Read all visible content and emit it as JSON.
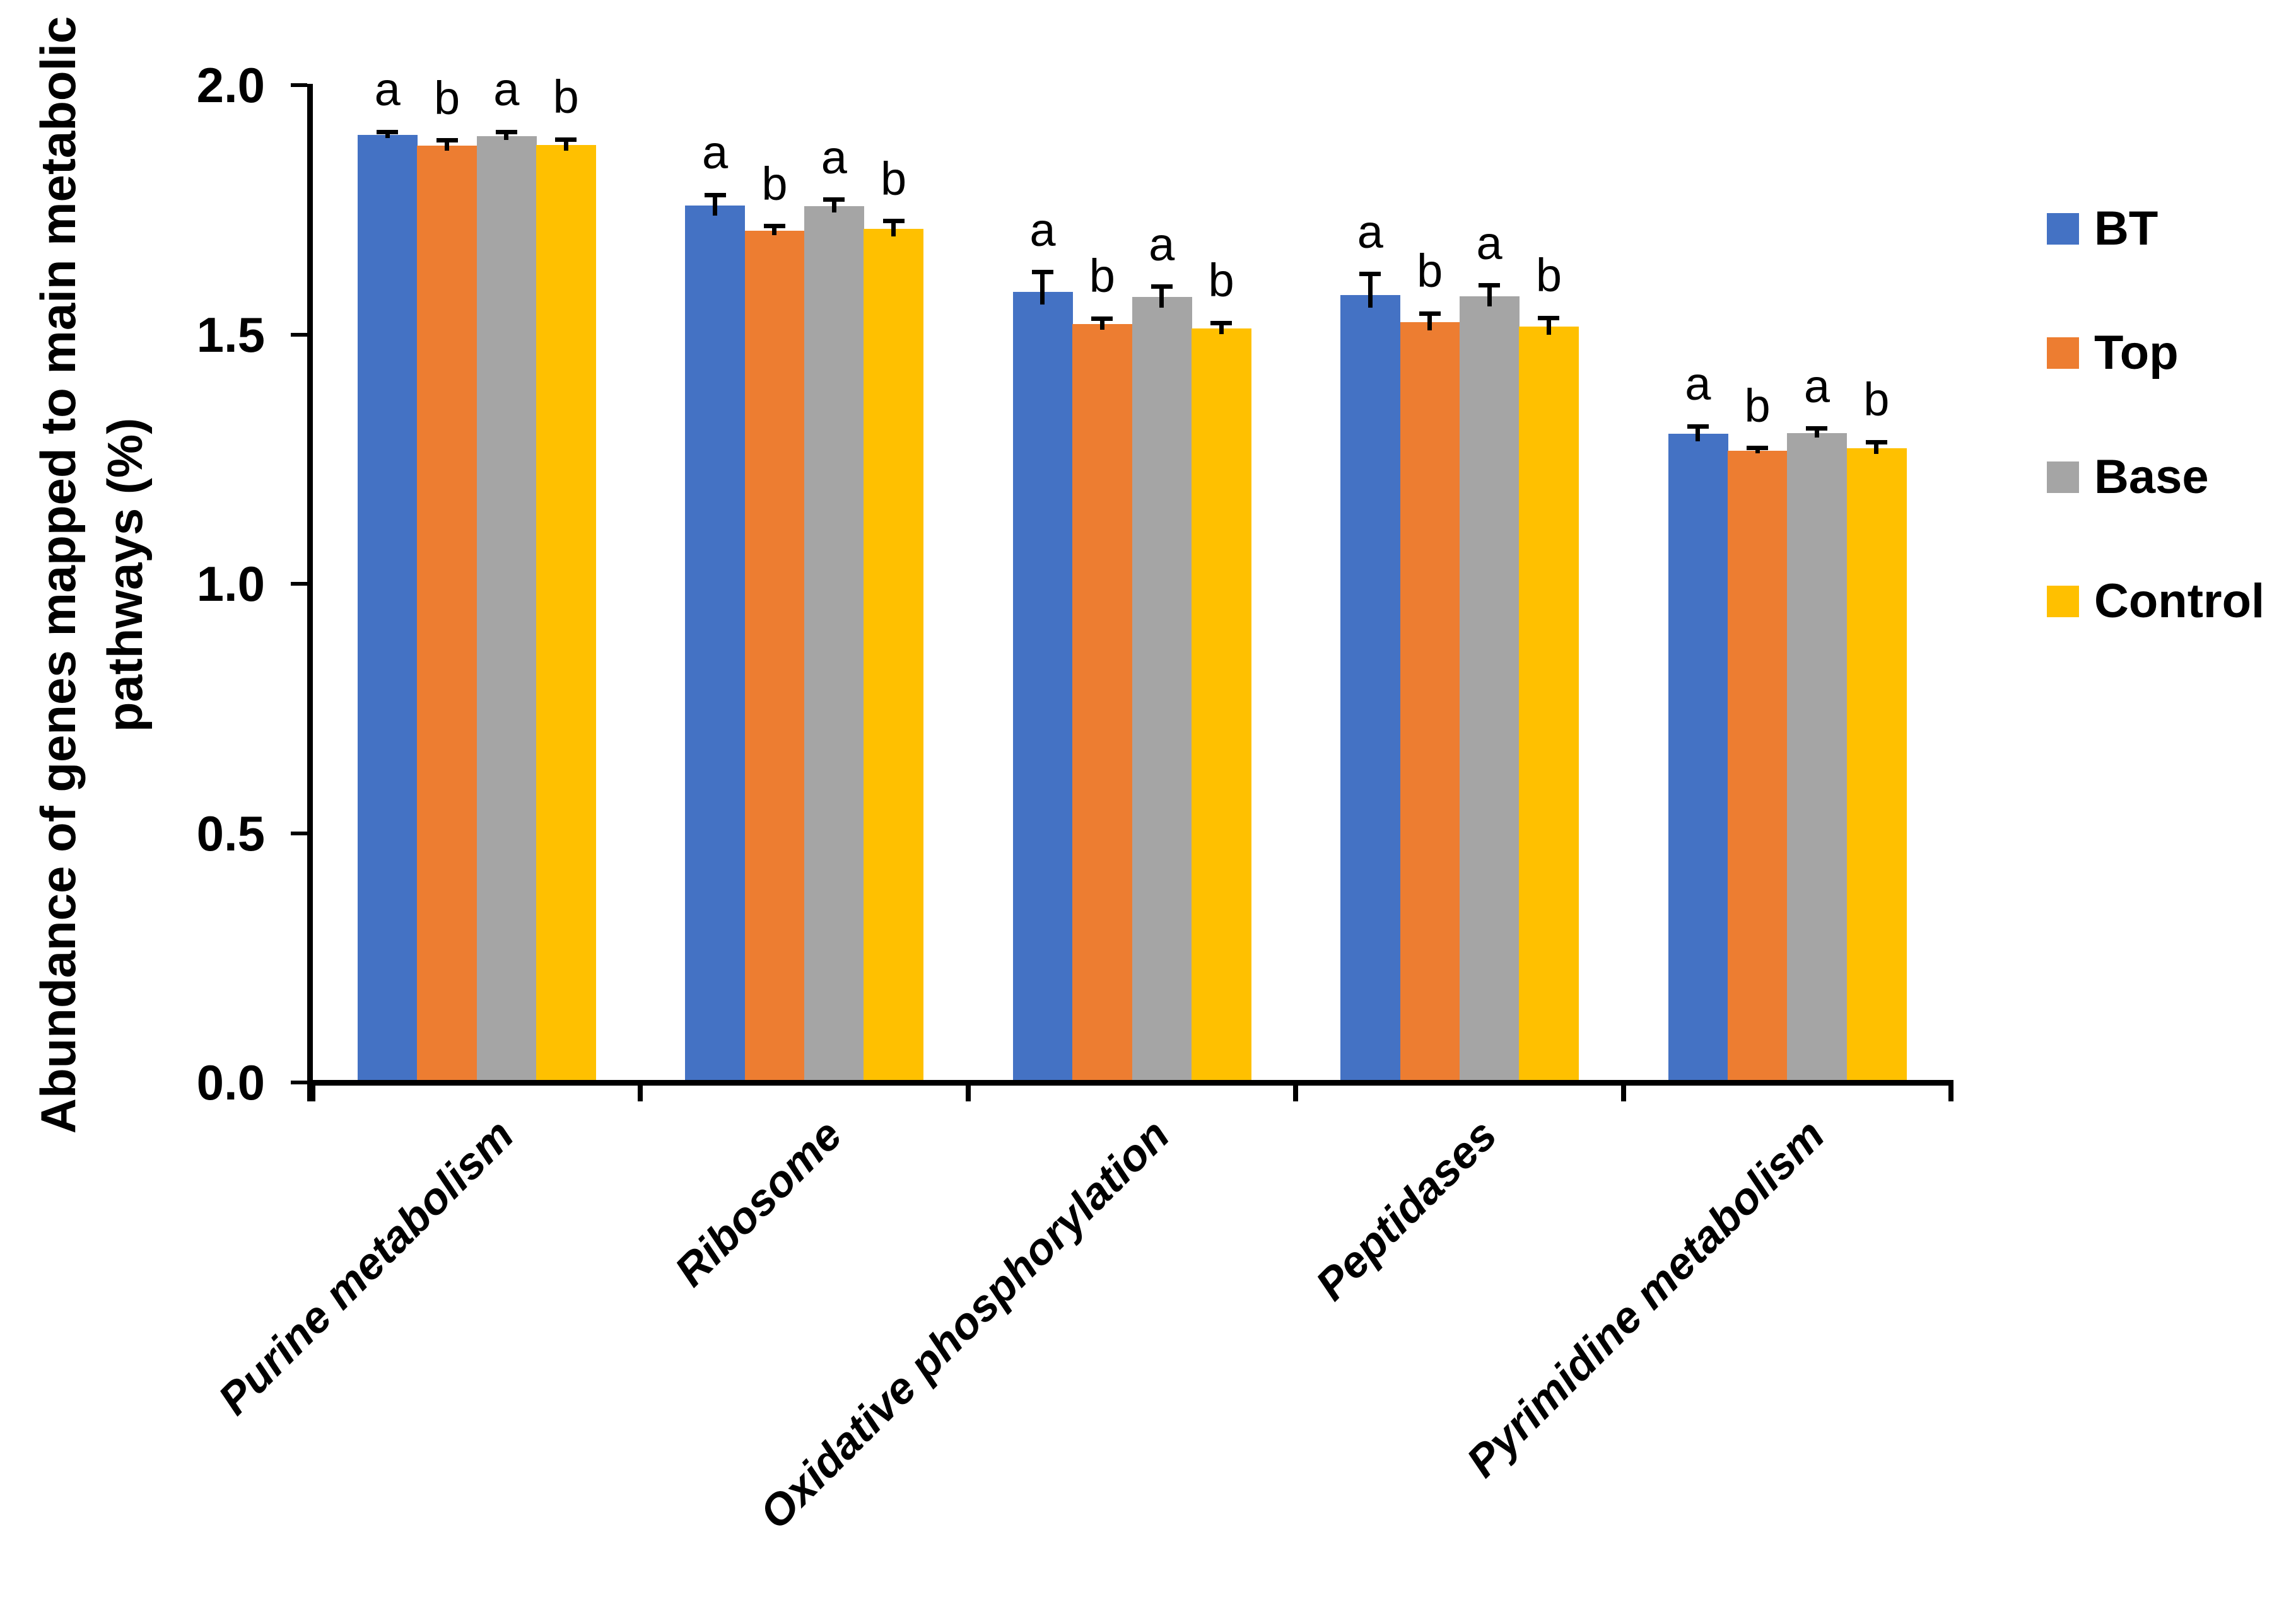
{
  "chart_data": {
    "type": "bar",
    "title": "",
    "ylabel_line1": "Abundance of genes mapped to main metabolic",
    "ylabel_line2": "pathways (%)",
    "xlabel": "",
    "ylim": [
      0,
      2
    ],
    "ytick_labels": [
      "0.0",
      "0.5",
      "1.0",
      "1.5",
      "2.0"
    ],
    "ytick_values": [
      0,
      0.5,
      1.0,
      1.5,
      2.0
    ],
    "grid": false,
    "legend_position": "right",
    "categories": [
      "Purine metabolism",
      "Ribosome",
      "Oxidative phosphorylation",
      "Peptidases",
      "Pyrimidine metabolism"
    ],
    "series": [
      {
        "name": "BT",
        "color": "#4472C4",
        "values": [
          1.9,
          1.759,
          1.585,
          1.579,
          1.301
        ],
        "errors": [
          0.006,
          0.021,
          0.04,
          0.042,
          0.015
        ]
      },
      {
        "name": "Top",
        "color": "#ED7D31",
        "values": [
          1.879,
          1.708,
          1.521,
          1.525,
          1.267
        ],
        "errors": [
          0.01,
          0.009,
          0.011,
          0.017,
          0.005
        ]
      },
      {
        "name": "Base",
        "color": "#A5A5A5",
        "values": [
          1.898,
          1.757,
          1.575,
          1.577,
          1.302
        ],
        "errors": [
          0.008,
          0.013,
          0.021,
          0.021,
          0.009
        ]
      },
      {
        "name": "Control",
        "color": "#FFC000",
        "values": [
          1.88,
          1.712,
          1.512,
          1.516,
          1.272
        ],
        "errors": [
          0.011,
          0.015,
          0.011,
          0.017,
          0.012
        ]
      }
    ],
    "sig_letters": [
      [
        "a",
        "b",
        "a",
        "b"
      ],
      [
        "a",
        "b",
        "a",
        "b"
      ],
      [
        "a",
        "b",
        "a",
        "b"
      ],
      [
        "a",
        "b",
        "a",
        "b"
      ],
      [
        "a",
        "b",
        "a",
        "b"
      ]
    ],
    "axis_color": "#000000",
    "background_color": "#FFFFFF"
  }
}
